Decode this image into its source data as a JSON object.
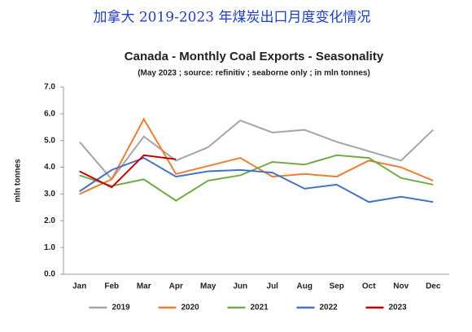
{
  "heading": "加拿大 2019-2023 年煤炭出口月度变化情况",
  "chart_data": {
    "type": "line",
    "title": "Canada - Monthly Coal Exports - Seasonality",
    "subtitle": "(May 2023 ; source: refinitiv ; seaborne only ; in mln tonnes)",
    "y_label": "mln tonnes",
    "categories": [
      "Jan",
      "Feb",
      "Mar",
      "Apr",
      "May",
      "Jun",
      "Jul",
      "Aug",
      "Sep",
      "Oct",
      "Nov",
      "Dec"
    ],
    "series": [
      {
        "name": "2019",
        "color": "#a6a6a6",
        "values": [
          4.95,
          3.55,
          5.15,
          4.25,
          4.75,
          5.75,
          5.3,
          5.4,
          4.95,
          4.6,
          4.25,
          5.4
        ]
      },
      {
        "name": "2020",
        "color": "#ed7d31",
        "values": [
          3.0,
          3.55,
          5.8,
          3.75,
          4.05,
          4.35,
          3.65,
          3.75,
          3.65,
          4.25,
          4.0,
          3.5
        ]
      },
      {
        "name": "2021",
        "color": "#70ad47",
        "values": [
          3.7,
          3.3,
          3.55,
          2.75,
          3.5,
          3.7,
          4.2,
          4.1,
          4.45,
          4.35,
          3.6,
          3.35
        ]
      },
      {
        "name": "2022",
        "color": "#4472c4",
        "values": [
          3.1,
          3.9,
          4.35,
          3.65,
          3.85,
          3.9,
          3.8,
          3.2,
          3.35,
          2.7,
          2.9,
          2.7
        ]
      },
      {
        "name": "2023",
        "color": "#c00000",
        "values": [
          3.85,
          3.25,
          4.45,
          4.3,
          null,
          null,
          null,
          null,
          null,
          null,
          null,
          null
        ]
      }
    ],
    "ylim": [
      0,
      7
    ],
    "yticks": [
      {
        "value": 0,
        "label": "0.0"
      },
      {
        "value": 1,
        "label": "1.0"
      },
      {
        "value": 2,
        "label": "2.0"
      },
      {
        "value": 3,
        "label": "3.0"
      },
      {
        "value": 4,
        "label": "4.0"
      },
      {
        "value": 5,
        "label": "5.0"
      },
      {
        "value": 6,
        "label": "6.0"
      },
      {
        "value": 7,
        "label": "7.0"
      }
    ],
    "grid": false,
    "legend": "bottom"
  }
}
